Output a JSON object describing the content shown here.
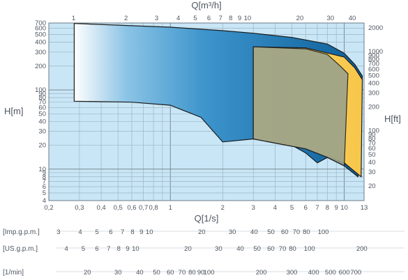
{
  "chart_data": {
    "type": "area",
    "x_axis_bottom": {
      "label": "Q[1/s]",
      "ticks": [
        "0,2",
        "0,3",
        "0,4",
        "0,5",
        "0,6",
        "0,7",
        "0,8",
        "1",
        "2",
        "3",
        "4",
        "5",
        "6",
        "7",
        "8",
        "9",
        "10",
        "13"
      ],
      "values": [
        0.2,
        0.3,
        0.4,
        0.5,
        0.6,
        0.7,
        0.8,
        1,
        2,
        3,
        4,
        5,
        6,
        7,
        8,
        9,
        10,
        13
      ],
      "range": [
        0.2,
        13
      ],
      "scale": "log"
    },
    "x_axis_top": {
      "label": "Q[m³/h]",
      "ticks": [
        "1",
        "2",
        "3",
        "4",
        "5",
        "6",
        "7",
        "8",
        "9",
        "10",
        "20",
        "30",
        "40"
      ],
      "values": [
        1,
        2,
        3,
        4,
        5,
        6,
        7,
        8,
        9,
        10,
        20,
        30,
        40
      ]
    },
    "y_axis_left": {
      "label": "H[m]",
      "ticks": [
        "700",
        "600",
        "500",
        "400",
        "300",
        "200",
        "100",
        "90",
        "80",
        "70",
        "60",
        "50",
        "40",
        "30",
        "20",
        "10",
        "9",
        "8",
        "7",
        "6",
        "5",
        "4"
      ],
      "values": [
        700,
        600,
        500,
        400,
        300,
        200,
        100,
        90,
        80,
        70,
        60,
        50,
        40,
        30,
        20,
        10,
        9,
        8,
        7,
        6,
        5,
        4
      ],
      "range": [
        4,
        700
      ],
      "scale": "log"
    },
    "y_axis_right": {
      "label": "H[ft]",
      "ticks": [
        "2000",
        "1000",
        "900",
        "800",
        "700",
        "600",
        "500",
        "400",
        "300",
        "200",
        "100",
        "90",
        "80",
        "70",
        "60",
        "50",
        "40",
        "30",
        "20"
      ],
      "values": [
        2000,
        1000,
        900,
        800,
        700,
        600,
        500,
        400,
        300,
        200,
        100,
        90,
        80,
        70,
        60,
        50,
        40,
        30,
        20
      ]
    },
    "extra_scales": [
      {
        "label": "[Imp.g.p.m.]",
        "ticks": [
          "3",
          "4",
          "5",
          "6",
          "7",
          "8",
          "9",
          "10",
          "20",
          "30",
          "40",
          "50",
          "60",
          "70",
          "80",
          "100"
        ],
        "values": [
          3,
          4,
          5,
          6,
          7,
          8,
          9,
          10,
          20,
          30,
          40,
          50,
          60,
          70,
          80,
          100
        ]
      },
      {
        "label": "[US.g.p.m.]",
        "ticks": [
          "4",
          "5",
          "6",
          "7",
          "8",
          "9",
          "10",
          "20",
          "30",
          "40",
          "50",
          "60",
          "70",
          "80",
          "100",
          "200"
        ],
        "values": [
          4,
          5,
          6,
          7,
          8,
          9,
          10,
          20,
          30,
          40,
          50,
          60,
          70,
          80,
          100,
          200
        ]
      },
      {
        "label": "[1/min]",
        "ticks": [
          "20",
          "30",
          "40",
          "50",
          "60",
          "70",
          "80",
          "90",
          "100",
          "200",
          "300",
          "400",
          "500",
          "600",
          "700"
        ],
        "values": [
          20,
          30,
          40,
          50,
          60,
          70,
          80,
          90,
          100,
          200,
          300,
          400,
          500,
          600,
          700
        ]
      }
    ],
    "series": [
      {
        "color": "#1f6fa8",
        "upper": [
          [
            0.28,
            690
          ],
          [
            1,
            620
          ],
          [
            2,
            560
          ],
          [
            3,
            520
          ],
          [
            5,
            460
          ],
          [
            8,
            380
          ],
          [
            10,
            290
          ],
          [
            11.5,
            210
          ],
          [
            12.7,
            150
          ]
        ],
        "lower": [
          [
            0.28,
            72
          ],
          [
            0.6,
            70
          ],
          [
            1,
            64
          ],
          [
            1.5,
            45
          ],
          [
            2,
            22
          ],
          [
            3,
            24
          ],
          [
            5,
            20
          ],
          [
            6,
            16
          ],
          [
            7,
            12
          ],
          [
            8,
            14
          ],
          [
            10,
            11
          ],
          [
            12,
            8
          ]
        ]
      },
      {
        "color": "#f8c953",
        "upper": [
          [
            3,
            350
          ],
          [
            6,
            340
          ],
          [
            10,
            260
          ],
          [
            11.5,
            190
          ],
          [
            12.7,
            135
          ]
        ],
        "lower": [
          [
            3,
            24
          ],
          [
            6,
            18
          ],
          [
            10,
            12
          ],
          [
            12.5,
            8
          ]
        ]
      },
      {
        "color": "#9aa28a",
        "upper": [
          [
            3,
            350
          ],
          [
            6,
            330
          ],
          [
            8,
            280
          ],
          [
            9.5,
            200
          ],
          [
            10.5,
            160
          ]
        ],
        "lower": [
          [
            3,
            24
          ],
          [
            6,
            18
          ],
          [
            8,
            14
          ],
          [
            10,
            11
          ]
        ]
      }
    ],
    "grid": true,
    "plot_background": "#c8e6f6"
  }
}
